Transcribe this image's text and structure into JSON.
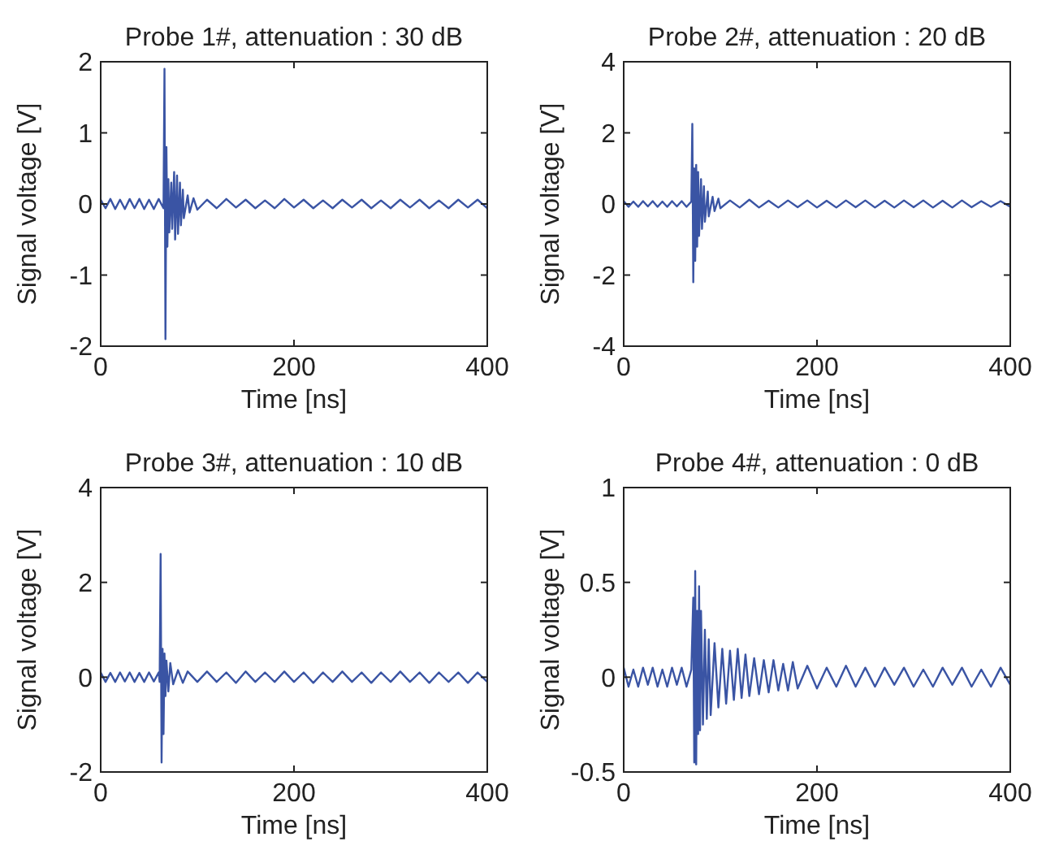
{
  "chart_data": [
    {
      "type": "line",
      "title": "Probe 1#, attenuation : 30 dB",
      "xlabel": "Time [ns]",
      "ylabel": "Signal voltage [V]",
      "xlim": [
        0,
        400
      ],
      "ylim": [
        -2,
        2
      ],
      "xticks": [
        0,
        200,
        400
      ],
      "yticks": [
        -2,
        -1,
        0,
        1,
        2
      ],
      "series": [
        {
          "color": "#3a54a4",
          "x": [
            0,
            5,
            10,
            15,
            20,
            25,
            30,
            35,
            40,
            45,
            50,
            55,
            60,
            65,
            66,
            67,
            68,
            69,
            70,
            71,
            73,
            74,
            76,
            77,
            79,
            80,
            82,
            83,
            85,
            86,
            90,
            92,
            96,
            100,
            110,
            120,
            130,
            140,
            150,
            160,
            170,
            180,
            190,
            200,
            210,
            220,
            230,
            240,
            250,
            260,
            270,
            280,
            290,
            300,
            310,
            320,
            330,
            340,
            350,
            360,
            370,
            380,
            390,
            400
          ],
          "values": [
            0.06,
            -0.06,
            0.07,
            -0.07,
            0.06,
            -0.07,
            0.07,
            -0.06,
            0.07,
            -0.07,
            0.06,
            -0.07,
            0.07,
            -0.06,
            1.9,
            -1.9,
            0.8,
            -0.6,
            0.35,
            -0.4,
            0.3,
            -0.35,
            0.45,
            -0.5,
            0.4,
            -0.42,
            0.3,
            -0.3,
            0.2,
            -0.2,
            0.12,
            -0.12,
            0.08,
            -0.08,
            0.06,
            -0.06,
            0.07,
            -0.05,
            0.06,
            -0.06,
            0.05,
            -0.06,
            0.07,
            -0.05,
            0.06,
            -0.06,
            0.05,
            -0.06,
            0.06,
            -0.05,
            0.06,
            -0.06,
            0.05,
            -0.06,
            0.06,
            -0.05,
            0.06,
            -0.06,
            0.05,
            -0.06,
            0.06,
            -0.05,
            0.06,
            -0.06
          ]
        }
      ]
    },
    {
      "type": "line",
      "title": "Probe 2#, attenuation : 20 dB",
      "xlabel": "Time [ns]",
      "ylabel": "Signal voltage [V]",
      "xlim": [
        0,
        400
      ],
      "ylim": [
        -4,
        4
      ],
      "xticks": [
        0,
        200,
        400
      ],
      "yticks": [
        -4,
        -2,
        0,
        2,
        4
      ],
      "series": [
        {
          "color": "#3a54a4",
          "x": [
            0,
            5,
            10,
            15,
            20,
            25,
            30,
            35,
            40,
            45,
            50,
            55,
            60,
            65,
            70,
            71,
            72,
            73,
            74,
            75,
            76,
            77,
            78,
            80,
            81,
            83,
            84,
            87,
            88,
            92,
            94,
            98,
            100,
            110,
            120,
            130,
            140,
            150,
            160,
            170,
            180,
            190,
            200,
            210,
            220,
            230,
            240,
            250,
            260,
            270,
            280,
            290,
            300,
            310,
            320,
            330,
            340,
            350,
            360,
            370,
            380,
            390,
            400
          ],
          "values": [
            0.08,
            -0.08,
            0.07,
            -0.08,
            0.08,
            -0.07,
            0.08,
            -0.08,
            0.07,
            -0.08,
            0.08,
            -0.07,
            0.08,
            -0.08,
            0.07,
            2.25,
            -2.2,
            1.0,
            -1.6,
            1.1,
            -1.2,
            0.9,
            -0.9,
            0.7,
            -0.7,
            0.5,
            -0.5,
            0.35,
            -0.35,
            0.2,
            -0.2,
            0.15,
            -0.12,
            0.1,
            -0.1,
            0.12,
            -0.1,
            0.09,
            -0.1,
            0.1,
            -0.09,
            0.1,
            -0.1,
            0.09,
            -0.1,
            0.1,
            -0.09,
            0.1,
            -0.1,
            0.09,
            -0.1,
            0.1,
            -0.09,
            0.1,
            -0.1,
            0.09,
            -0.1,
            0.1,
            -0.09,
            0.08,
            -0.08,
            0.08,
            -0.08
          ]
        }
      ]
    },
    {
      "type": "line",
      "title": "Probe 3#, attenuation : 10 dB",
      "xlabel": "Time [ns]",
      "ylabel": "Signal voltage [V]",
      "xlim": [
        0,
        400
      ],
      "ylim": [
        -2,
        4
      ],
      "xticks": [
        0,
        200,
        400
      ],
      "yticks": [
        -2,
        0,
        2,
        4
      ],
      "series": [
        {
          "color": "#3a54a4",
          "x": [
            0,
            5,
            10,
            15,
            20,
            25,
            30,
            35,
            40,
            45,
            50,
            55,
            60,
            61,
            62,
            63,
            64,
            65,
            66,
            67,
            68,
            70,
            72,
            75,
            80,
            85,
            90,
            100,
            110,
            120,
            130,
            140,
            150,
            160,
            170,
            180,
            190,
            200,
            210,
            220,
            230,
            240,
            250,
            260,
            270,
            280,
            290,
            300,
            310,
            320,
            330,
            340,
            350,
            360,
            370,
            380,
            390,
            400
          ],
          "values": [
            0.1,
            -0.1,
            0.09,
            -0.1,
            0.1,
            -0.09,
            0.1,
            -0.1,
            0.09,
            -0.1,
            0.1,
            -0.09,
            0.1,
            -0.1,
            2.6,
            -1.8,
            0.6,
            -1.2,
            0.5,
            -0.4,
            0.35,
            -0.3,
            0.3,
            -0.15,
            0.15,
            -0.12,
            0.12,
            -0.1,
            0.12,
            -0.1,
            0.1,
            -0.12,
            0.12,
            -0.1,
            0.1,
            -0.1,
            0.12,
            -0.1,
            0.1,
            -0.12,
            0.1,
            -0.1,
            0.12,
            -0.1,
            0.1,
            -0.12,
            0.1,
            -0.1,
            0.12,
            -0.1,
            0.1,
            -0.12,
            0.1,
            -0.1,
            0.1,
            -0.12,
            0.1,
            -0.1
          ]
        }
      ]
    },
    {
      "type": "line",
      "title": "Probe 4#, attenuation : 0 dB",
      "xlabel": "Time [ns]",
      "ylabel": "Signal voltage [V]",
      "xlim": [
        0,
        400
      ],
      "ylim": [
        -0.5,
        1
      ],
      "xticks": [
        0,
        200,
        400
      ],
      "yticks": [
        -0.5,
        0,
        0.5,
        1
      ],
      "series": [
        {
          "color": "#3a54a4",
          "x": [
            0,
            5,
            10,
            15,
            20,
            25,
            30,
            35,
            40,
            45,
            50,
            55,
            60,
            65,
            70,
            72,
            73,
            74,
            75,
            76,
            77,
            78,
            79,
            80,
            82,
            84,
            86,
            88,
            90,
            94,
            98,
            102,
            106,
            110,
            114,
            118,
            122,
            126,
            130,
            135,
            140,
            145,
            150,
            155,
            160,
            165,
            170,
            175,
            180,
            190,
            200,
            210,
            220,
            230,
            240,
            250,
            260,
            270,
            280,
            290,
            300,
            310,
            320,
            330,
            340,
            350,
            360,
            370,
            380,
            390,
            400
          ],
          "values": [
            0.05,
            -0.05,
            0.04,
            -0.05,
            0.05,
            -0.04,
            0.05,
            -0.05,
            0.04,
            -0.05,
            0.05,
            -0.04,
            0.05,
            -0.05,
            0.04,
            0.42,
            -0.45,
            0.56,
            -0.46,
            0.35,
            -0.3,
            0.48,
            -0.28,
            0.35,
            -0.25,
            0.25,
            -0.22,
            0.2,
            -0.2,
            0.18,
            -0.16,
            0.15,
            -0.14,
            0.14,
            -0.12,
            0.15,
            -0.11,
            0.12,
            -0.1,
            0.1,
            -0.09,
            0.09,
            -0.08,
            0.09,
            -0.07,
            0.07,
            -0.07,
            0.08,
            -0.06,
            0.06,
            -0.06,
            0.05,
            -0.05,
            0.06,
            -0.05,
            0.05,
            -0.05,
            0.05,
            -0.04,
            0.05,
            -0.05,
            0.04,
            -0.05,
            0.05,
            -0.04,
            0.05,
            -0.05,
            0.04,
            -0.05,
            0.05,
            -0.04
          ]
        }
      ]
    }
  ]
}
